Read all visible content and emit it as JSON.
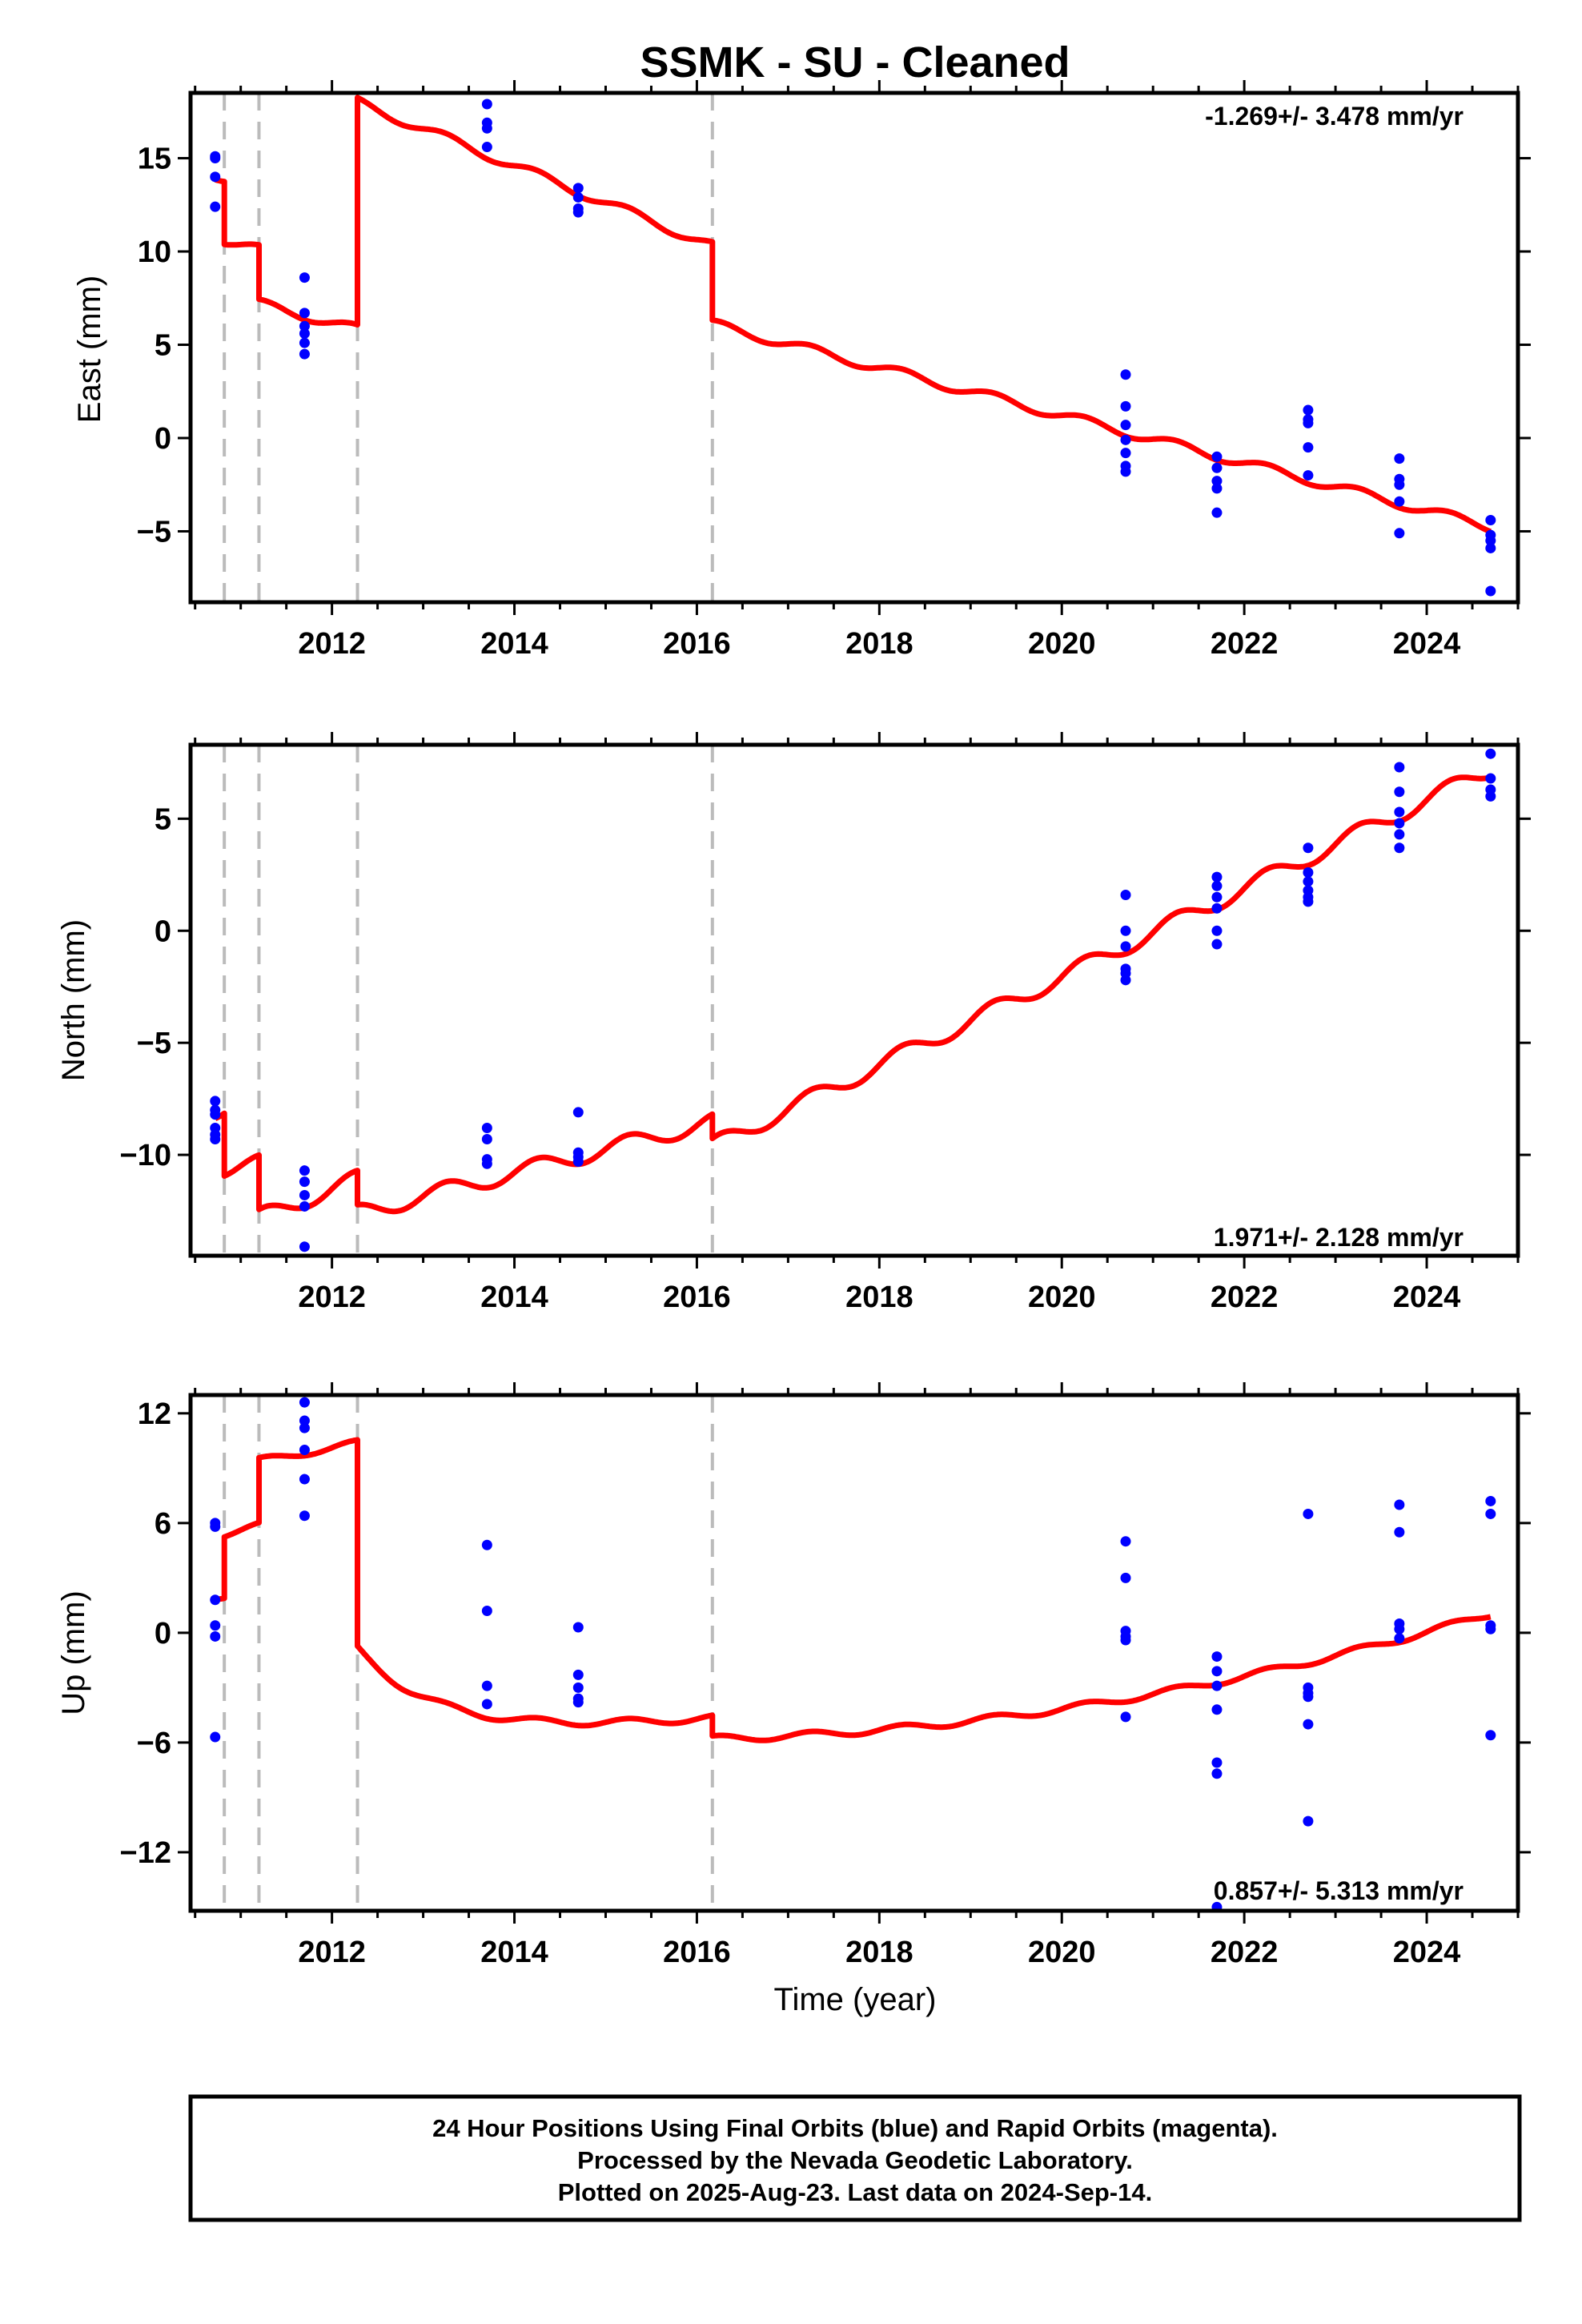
{
  "title": "SSMK  - SU - Cleaned",
  "colors": {
    "model": "#ff0000",
    "points": "#0000ff",
    "breaks": "#bbbbbb",
    "frame": "#000000"
  },
  "xlabel": "Time (year)",
  "xticks": [
    2012,
    2014,
    2016,
    2018,
    2020,
    2022,
    2024
  ],
  "xlim": [
    2010.45,
    2025.0
  ],
  "breaks": [
    2010.82,
    2011.2,
    2012.28,
    2016.17
  ],
  "footer": {
    "line1": "24 Hour Positions Using Final Orbits (blue) and Rapid Orbits (magenta).",
    "line2": "Processed by the Nevada Geodetic Laboratory.",
    "line3": "Plotted on 2025-Aug-23. Last data on 2024-Sep-14."
  },
  "chart_data": [
    {
      "type": "scatter",
      "ylabel": "East (mm)",
      "ylim": [
        -8.8,
        18.5
      ],
      "yticks": [
        -5,
        0,
        5,
        10,
        15
      ],
      "rate_text": "-1.269+/- 3.478 mm/yr",
      "rate_position": "top-right",
      "points": [
        [
          2010.72,
          15.1
        ],
        [
          2010.72,
          15.0
        ],
        [
          2010.72,
          14.0
        ],
        [
          2010.72,
          12.4
        ],
        [
          2011.7,
          8.6
        ],
        [
          2011.7,
          6.7
        ],
        [
          2011.7,
          6.0
        ],
        [
          2011.7,
          5.6
        ],
        [
          2011.7,
          5.1
        ],
        [
          2011.7,
          4.5
        ],
        [
          2013.7,
          17.9
        ],
        [
          2013.7,
          16.9
        ],
        [
          2013.7,
          16.6
        ],
        [
          2013.7,
          15.6
        ],
        [
          2014.7,
          13.4
        ],
        [
          2014.7,
          12.9
        ],
        [
          2014.7,
          12.3
        ],
        [
          2014.7,
          12.1
        ],
        [
          2020.7,
          3.4
        ],
        [
          2020.7,
          1.7
        ],
        [
          2020.7,
          0.7
        ],
        [
          2020.7,
          -0.1
        ],
        [
          2020.7,
          -0.8
        ],
        [
          2020.7,
          -1.5
        ],
        [
          2020.7,
          -1.8
        ],
        [
          2021.7,
          -1.0
        ],
        [
          2021.7,
          -1.6
        ],
        [
          2021.7,
          -2.3
        ],
        [
          2021.7,
          -2.7
        ],
        [
          2021.7,
          -4.0
        ],
        [
          2022.7,
          1.5
        ],
        [
          2022.7,
          1.0
        ],
        [
          2022.7,
          0.8
        ],
        [
          2022.7,
          -0.5
        ],
        [
          2022.7,
          -2.0
        ],
        [
          2023.7,
          -1.1
        ],
        [
          2023.7,
          -2.2
        ],
        [
          2023.7,
          -2.5
        ],
        [
          2023.7,
          -3.4
        ],
        [
          2023.7,
          -5.1
        ],
        [
          2024.7,
          -4.4
        ],
        [
          2024.7,
          -5.2
        ],
        [
          2024.7,
          -5.5
        ],
        [
          2024.7,
          -5.9
        ],
        [
          2024.7,
          -8.2
        ]
      ],
      "model": {
        "segments": [
          {
            "x0": 2010.72,
            "x1": 2010.82,
            "y0": 14.1,
            "slope": -1.269
          },
          {
            "x0": 2010.82,
            "x1": 2011.2,
            "y0": 10.6,
            "slope": -1.269
          },
          {
            "x0": 2011.2,
            "x1": 2012.28,
            "y0": 7.2,
            "slope": -1.269
          },
          {
            "x0": 2012.28,
            "x1": 2016.17,
            "y0": 18.0,
            "slope": -1.98
          },
          {
            "x0": 2016.17,
            "x1": 2024.7,
            "y0": 6.1,
            "slope": -1.275
          }
        ],
        "seasonal_amplitude": 0.25
      }
    },
    {
      "type": "scatter",
      "ylabel": "North (mm)",
      "ylim": [
        -14.5,
        8.3
      ],
      "yticks": [
        -10,
        -5,
        0,
        5
      ],
      "rate_text": "1.971+/- 2.128 mm/yr",
      "rate_position": "bottom-right",
      "points": [
        [
          2010.72,
          -7.6
        ],
        [
          2010.72,
          -8.0
        ],
        [
          2010.72,
          -8.2
        ],
        [
          2010.72,
          -8.8
        ],
        [
          2010.72,
          -9.1
        ],
        [
          2010.72,
          -9.3
        ],
        [
          2011.7,
          -10.7
        ],
        [
          2011.7,
          -11.2
        ],
        [
          2011.7,
          -11.8
        ],
        [
          2011.7,
          -12.3
        ],
        [
          2011.7,
          -14.1
        ],
        [
          2013.7,
          -8.8
        ],
        [
          2013.7,
          -9.3
        ],
        [
          2013.7,
          -10.2
        ],
        [
          2013.7,
          -10.4
        ],
        [
          2014.7,
          -8.1
        ],
        [
          2014.7,
          -9.9
        ],
        [
          2014.7,
          -10.1
        ],
        [
          2014.7,
          -10.3
        ],
        [
          2020.7,
          1.6
        ],
        [
          2020.7,
          0.0
        ],
        [
          2020.7,
          -0.7
        ],
        [
          2020.7,
          -1.7
        ],
        [
          2020.7,
          -1.9
        ],
        [
          2020.7,
          -2.2
        ],
        [
          2021.7,
          2.4
        ],
        [
          2021.7,
          2.0
        ],
        [
          2021.7,
          1.5
        ],
        [
          2021.7,
          1.0
        ],
        [
          2021.7,
          0.0
        ],
        [
          2021.7,
          -0.6
        ],
        [
          2022.7,
          3.7
        ],
        [
          2022.7,
          2.6
        ],
        [
          2022.7,
          2.2
        ],
        [
          2022.7,
          1.8
        ],
        [
          2022.7,
          1.5
        ],
        [
          2022.7,
          1.3
        ],
        [
          2023.7,
          7.3
        ],
        [
          2023.7,
          6.2
        ],
        [
          2023.7,
          5.3
        ],
        [
          2023.7,
          4.8
        ],
        [
          2023.7,
          4.3
        ],
        [
          2023.7,
          3.7
        ],
        [
          2024.7,
          7.9
        ],
        [
          2024.7,
          6.8
        ],
        [
          2024.7,
          6.3
        ],
        [
          2024.7,
          6.0
        ]
      ],
      "model": {
        "segments": [
          {
            "x0": 2010.72,
            "x1": 2010.82,
            "y0": -8.0,
            "slope": 1.971
          },
          {
            "x0": 2010.82,
            "x1": 2011.2,
            "y0": -10.6,
            "slope": 0.6
          },
          {
            "x0": 2011.2,
            "x1": 2012.28,
            "y0": -12.8,
            "slope": 1.6
          },
          {
            "x0": 2012.28,
            "x1": 2016.17,
            "y0": -12.6,
            "slope": 1.05
          },
          {
            "x0": 2016.17,
            "x1": 2024.7,
            "y0": -9.6,
            "slope": 1.971
          }
        ],
        "seasonal_amplitude": 0.38
      }
    },
    {
      "type": "scatter",
      "ylabel": "Up (mm)",
      "ylim": [
        -15.2,
        13.0
      ],
      "yticks": [
        -12,
        -6,
        0,
        6,
        12
      ],
      "rate_text": "0.857+/- 5.313 mm/yr",
      "rate_position": "bottom-right",
      "points": [
        [
          2010.72,
          6.0
        ],
        [
          2010.72,
          5.8
        ],
        [
          2010.72,
          1.8
        ],
        [
          2010.72,
          0.4
        ],
        [
          2010.72,
          -0.2
        ],
        [
          2010.72,
          -5.7
        ],
        [
          2011.7,
          12.6
        ],
        [
          2011.7,
          11.6
        ],
        [
          2011.7,
          11.2
        ],
        [
          2011.7,
          10.0
        ],
        [
          2011.7,
          8.4
        ],
        [
          2011.7,
          6.4
        ],
        [
          2013.7,
          4.8
        ],
        [
          2013.7,
          1.2
        ],
        [
          2013.7,
          -2.9
        ],
        [
          2013.7,
          -3.9
        ],
        [
          2014.7,
          0.3
        ],
        [
          2014.7,
          -2.3
        ],
        [
          2014.7,
          -3.0
        ],
        [
          2014.7,
          -3.6
        ],
        [
          2014.7,
          -3.8
        ],
        [
          2020.7,
          5.0
        ],
        [
          2020.7,
          3.0
        ],
        [
          2020.7,
          0.1
        ],
        [
          2020.7,
          -0.2
        ],
        [
          2020.7,
          -0.4
        ],
        [
          2020.7,
          -4.6
        ],
        [
          2021.7,
          -1.3
        ],
        [
          2021.7,
          -2.1
        ],
        [
          2021.7,
          -2.9
        ],
        [
          2021.7,
          -4.2
        ],
        [
          2021.7,
          -7.1
        ],
        [
          2021.7,
          -7.7
        ],
        [
          2021.7,
          -15.0
        ],
        [
          2022.7,
          6.5
        ],
        [
          2022.7,
          -3.0
        ],
        [
          2022.7,
          -3.3
        ],
        [
          2022.7,
          -3.5
        ],
        [
          2022.7,
          -5.0
        ],
        [
          2022.7,
          -10.3
        ],
        [
          2023.7,
          7.0
        ],
        [
          2023.7,
          5.5
        ],
        [
          2023.7,
          0.5
        ],
        [
          2023.7,
          0.2
        ],
        [
          2023.7,
          -0.3
        ],
        [
          2024.7,
          7.2
        ],
        [
          2024.7,
          6.5
        ],
        [
          2024.7,
          0.4
        ],
        [
          2024.7,
          0.2
        ],
        [
          2024.7,
          -5.6
        ]
      ],
      "model": {
        "segments": [
          {
            "x0": 2010.72,
            "x1": 2010.82,
            "y0": 2.0,
            "slope": 0.5
          },
          {
            "x0": 2010.82,
            "x1": 2011.2,
            "y0": 5.4,
            "slope": 1.2
          },
          {
            "x0": 2011.2,
            "x1": 2012.28,
            "y0": 9.4,
            "slope": 0.9
          },
          {
            "x0": 2012.28,
            "x1": 2016.17,
            "y0": -0.9,
            "slope": -0.6,
            "curve": true
          },
          {
            "x0": 2016.17,
            "x1": 2024.7,
            "y0": -5.8,
            "slope": 0.857,
            "curve2": true
          }
        ],
        "seasonal_amplitude": 0.18
      }
    }
  ]
}
